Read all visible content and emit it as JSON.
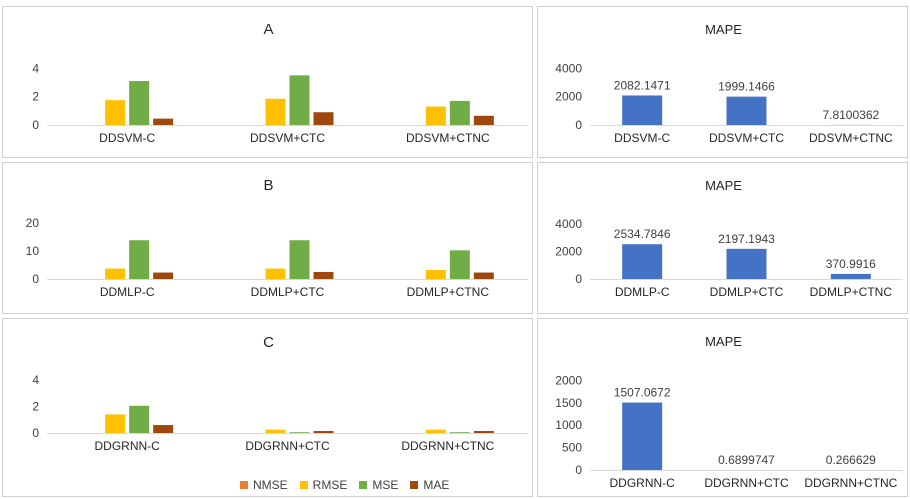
{
  "legend": {
    "items": [
      {
        "name": "NMSE",
        "color": "#ED7D31"
      },
      {
        "name": "RMSE",
        "color": "#FFC000"
      },
      {
        "name": "MSE",
        "color": "#70AD47"
      },
      {
        "name": "MAE",
        "color": "#9E480E"
      }
    ]
  },
  "chart_data": [
    {
      "type": "bar",
      "title": "A",
      "categories": [
        "DDSVM-C",
        "DDSVM+CTC",
        "DDSVM+CTNC"
      ],
      "yticks": [
        0,
        2,
        4
      ],
      "ylim": [
        0,
        4.3
      ],
      "grid": false,
      "series": [
        {
          "name": "NMSE",
          "color": "#ED7D31",
          "values": [
            0,
            0,
            0
          ]
        },
        {
          "name": "RMSE",
          "color": "#FFC000",
          "values": [
            1.75,
            1.85,
            1.3
          ]
        },
        {
          "name": "MSE",
          "color": "#70AD47",
          "values": [
            3.1,
            3.5,
            1.7
          ]
        },
        {
          "name": "MAE",
          "color": "#9E480E",
          "values": [
            0.45,
            0.9,
            0.65
          ]
        }
      ]
    },
    {
      "type": "bar",
      "title": "MAPE",
      "categories": [
        "DDSVM-C",
        "DDSVM+CTC",
        "DDSVM+CTNC"
      ],
      "yticks": [
        0,
        2000,
        4000
      ],
      "ylim": [
        0,
        4300
      ],
      "grid": false,
      "series": [
        {
          "name": "MAPE",
          "color": "#4472C4",
          "values": [
            2082.1471,
            1999.1466,
            7.8100362
          ],
          "labels": [
            "2082.1471",
            "1999.1466",
            "7.8100362"
          ]
        }
      ]
    },
    {
      "type": "bar",
      "title": "B",
      "categories": [
        "DDMLP-C",
        "DDMLP+CTC",
        "DDMLP+CTNC"
      ],
      "yticks": [
        0,
        10,
        20
      ],
      "ylim": [
        0,
        21
      ],
      "grid": false,
      "series": [
        {
          "name": "NMSE",
          "color": "#ED7D31",
          "values": [
            0,
            0,
            0
          ]
        },
        {
          "name": "RMSE",
          "color": "#FFC000",
          "values": [
            3.7,
            3.7,
            3.2
          ]
        },
        {
          "name": "MSE",
          "color": "#70AD47",
          "values": [
            13.8,
            13.8,
            10.2
          ]
        },
        {
          "name": "MAE",
          "color": "#9E480E",
          "values": [
            2.3,
            2.5,
            2.3
          ]
        }
      ]
    },
    {
      "type": "bar",
      "title": "MAPE",
      "categories": [
        "DDMLP-C",
        "DDMLP+CTC",
        "DDMLP+CTNC"
      ],
      "yticks": [
        0,
        2000,
        4000
      ],
      "ylim": [
        0,
        4300
      ],
      "grid": false,
      "series": [
        {
          "name": "MAPE",
          "color": "#4472C4",
          "values": [
            2534.7846,
            2197.1943,
            370.9916
          ],
          "labels": [
            "2534.7846",
            "2197.1943",
            "370.9916"
          ]
        }
      ]
    },
    {
      "type": "bar",
      "title": "C",
      "categories": [
        "DDGRNN-C",
        "DDGRNN+CTC",
        "DDGRNN+CTNC"
      ],
      "yticks": [
        0,
        2,
        4
      ],
      "ylim": [
        0,
        4.3
      ],
      "grid": false,
      "series": [
        {
          "name": "NMSE",
          "color": "#ED7D31",
          "values": [
            0,
            0,
            0
          ]
        },
        {
          "name": "RMSE",
          "color": "#FFC000",
          "values": [
            1.4,
            0.25,
            0.25
          ]
        },
        {
          "name": "MSE",
          "color": "#70AD47",
          "values": [
            2.05,
            0.06,
            0.06
          ]
        },
        {
          "name": "MAE",
          "color": "#9E480E",
          "values": [
            0.6,
            0.15,
            0.15
          ]
        }
      ]
    },
    {
      "type": "bar",
      "title": "MAPE",
      "categories": [
        "DDGRNN-C",
        "DDGRNN+CTC",
        "DDGRNN+CTNC"
      ],
      "yticks": [
        0,
        500,
        1000,
        1500,
        2000
      ],
      "ylim": [
        0,
        2100
      ],
      "grid": false,
      "series": [
        {
          "name": "MAPE",
          "color": "#4472C4",
          "values": [
            1507.0672,
            0.6899747,
            0.266629
          ],
          "labels": [
            "1507.0672",
            "0.6899747",
            "0.266629"
          ]
        }
      ]
    }
  ]
}
